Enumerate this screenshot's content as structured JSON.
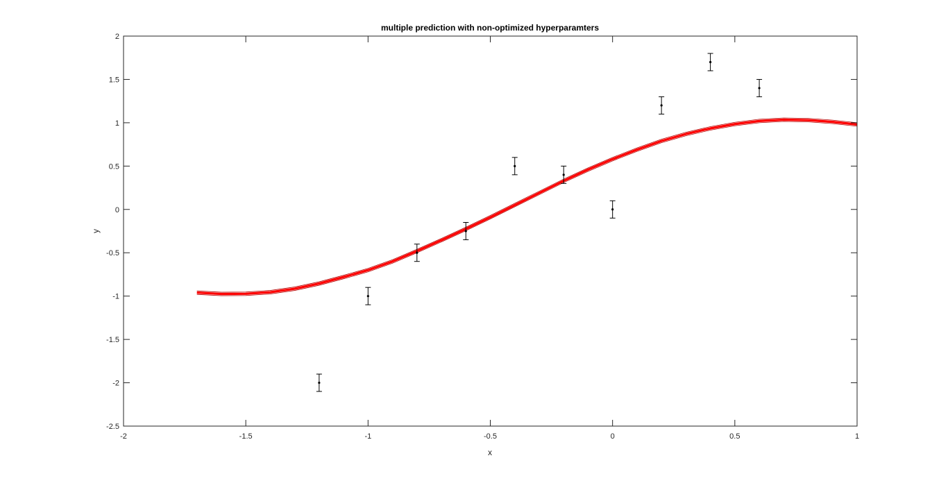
{
  "chart_data": {
    "type": "line",
    "title": "multiple prediction with non-optimized hyperparamters",
    "xlabel": "x",
    "ylabel": "y",
    "xlim": [
      -2,
      1
    ],
    "ylim": [
      -2.5,
      2
    ],
    "xticks": [
      -2,
      -1.5,
      -1,
      -0.5,
      0,
      0.5,
      1
    ],
    "xtick_labels": [
      "-2",
      "-1.5",
      "-1",
      "-0.5",
      "0",
      "0.5",
      "1"
    ],
    "yticks": [
      -2.5,
      -2,
      -1.5,
      -1,
      -0.5,
      0,
      0.5,
      1,
      1.5,
      2
    ],
    "ytick_labels": [
      "-2.5",
      "-2",
      "-1.5",
      "-1",
      "-0.5",
      "0",
      "0.5",
      "1",
      "1.5",
      "2"
    ],
    "grid": false,
    "legend": "none",
    "colors": {
      "prediction_line": "#ff0000",
      "band_edges": "#b40000",
      "points": "#000000",
      "axes": "#262626"
    },
    "series": [
      {
        "type": "line",
        "x": [
          -1.7,
          -1.6,
          -1.5,
          -1.4,
          -1.3,
          -1.2,
          -1.1,
          -1.0,
          -0.9,
          -0.8,
          -0.7,
          -0.6,
          -0.5,
          -0.4,
          -0.3,
          -0.2,
          -0.1,
          0.0,
          0.1,
          0.2,
          0.3,
          0.4,
          0.5,
          0.6,
          0.7,
          0.8,
          0.9,
          1.0
        ],
        "y": [
          -0.96,
          -0.975,
          -0.973,
          -0.955,
          -0.915,
          -0.855,
          -0.78,
          -0.7,
          -0.6,
          -0.48,
          -0.355,
          -0.225,
          -0.09,
          0.05,
          0.19,
          0.33,
          0.46,
          0.58,
          0.69,
          0.79,
          0.87,
          0.935,
          0.985,
          1.02,
          1.035,
          1.03,
          1.01,
          0.98
        ],
        "band": 0.02
      },
      {
        "type": "errorbar",
        "x": [
          -1.2,
          -1.0,
          -0.8,
          -0.6,
          -0.4,
          -0.2,
          0.0,
          0.2,
          0.4,
          0.6
        ],
        "y": [
          -2.0,
          -1.0,
          -0.5,
          -0.25,
          0.5,
          0.4,
          0.0,
          1.2,
          1.7,
          1.4
        ],
        "error": [
          0.1,
          0.1,
          0.1,
          0.1,
          0.1,
          0.1,
          0.1,
          0.1,
          0.1,
          0.1
        ]
      }
    ]
  }
}
